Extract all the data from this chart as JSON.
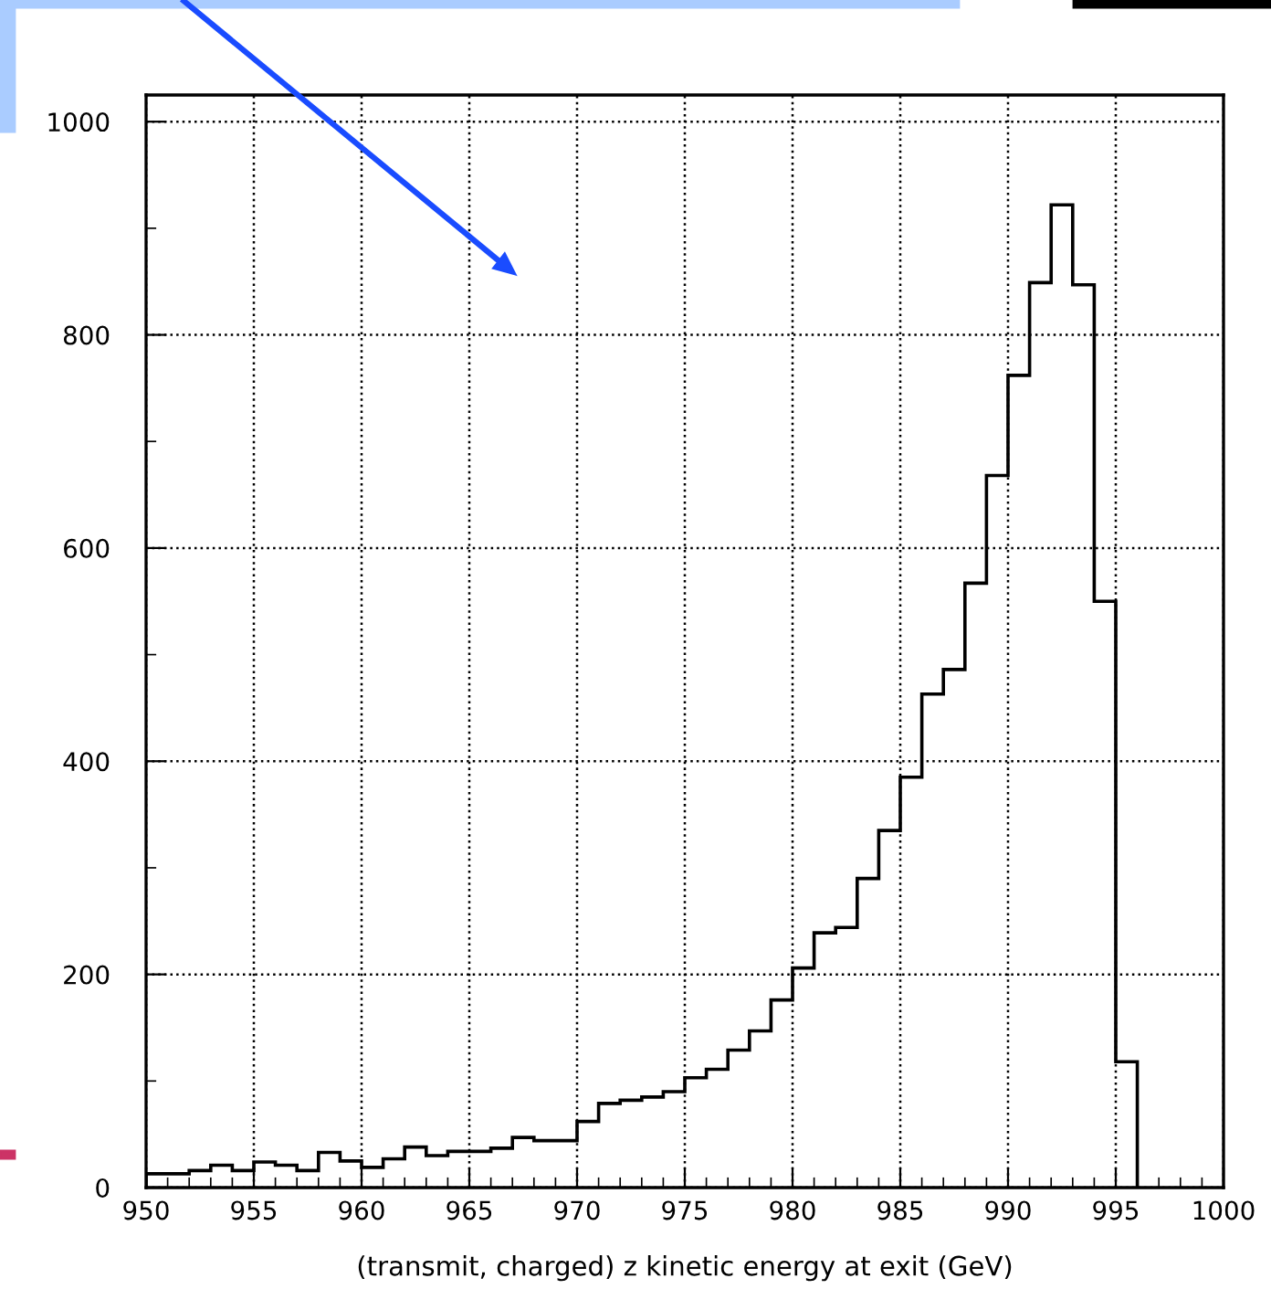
{
  "chart_data": {
    "type": "histogram",
    "xlabel": "(transmit, charged) z kinetic energy at exit (GeV)",
    "bins": [
      950,
      951,
      952,
      953,
      954,
      955,
      956,
      957,
      958,
      959,
      960,
      961,
      962,
      963,
      964,
      965,
      966,
      967,
      968,
      969,
      970,
      971,
      972,
      973,
      974,
      975,
      976,
      977,
      978,
      979,
      980,
      981,
      982,
      983,
      984,
      985,
      986,
      987,
      988,
      989,
      990,
      991,
      992,
      993,
      994,
      995,
      996
    ],
    "values": [
      13,
      13,
      16,
      21,
      16,
      24,
      21,
      16,
      33,
      25,
      19,
      27,
      38,
      30,
      34,
      34,
      37,
      47,
      44,
      44,
      62,
      79,
      82,
      85,
      90,
      103,
      111,
      129,
      147,
      176,
      206,
      239,
      244,
      290,
      335,
      385,
      463,
      486,
      567,
      668,
      762,
      849,
      922,
      847,
      550,
      118
    ],
    "color": "#000000",
    "xlim": [
      950,
      1000
    ],
    "xticks": [
      950,
      955,
      960,
      965,
      970,
      975,
      980,
      985,
      990,
      995,
      1000
    ],
    "ylim": [
      0,
      1025
    ],
    "yticks": [
      0,
      200,
      400,
      600,
      800,
      1000
    ],
    "grid": true,
    "line_style": "dotted"
  }
}
